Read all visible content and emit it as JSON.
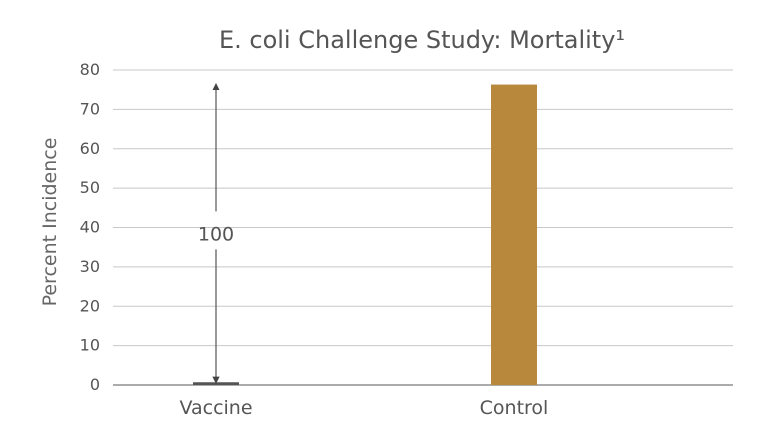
{
  "chart_data": {
    "type": "bar",
    "title": "E. coli Challenge Study: Mortality¹",
    "xlabel": "",
    "ylabel": "Percent Incidence",
    "categories": [
      "Vaccine",
      "Control"
    ],
    "values": [
      0.7,
      76.3
    ],
    "ylim": [
      0,
      80
    ],
    "yticks": [
      0,
      10,
      20,
      30,
      40,
      50,
      60,
      70,
      80
    ],
    "grid": true,
    "legend": "none",
    "bar_color": "#B8893C",
    "vaccine_bar_color": "#555555",
    "annotations": [
      {
        "text": "100",
        "type": "double-arrow",
        "category": "Vaccine",
        "from_value": 0.7,
        "to_value": 76.3
      }
    ]
  }
}
